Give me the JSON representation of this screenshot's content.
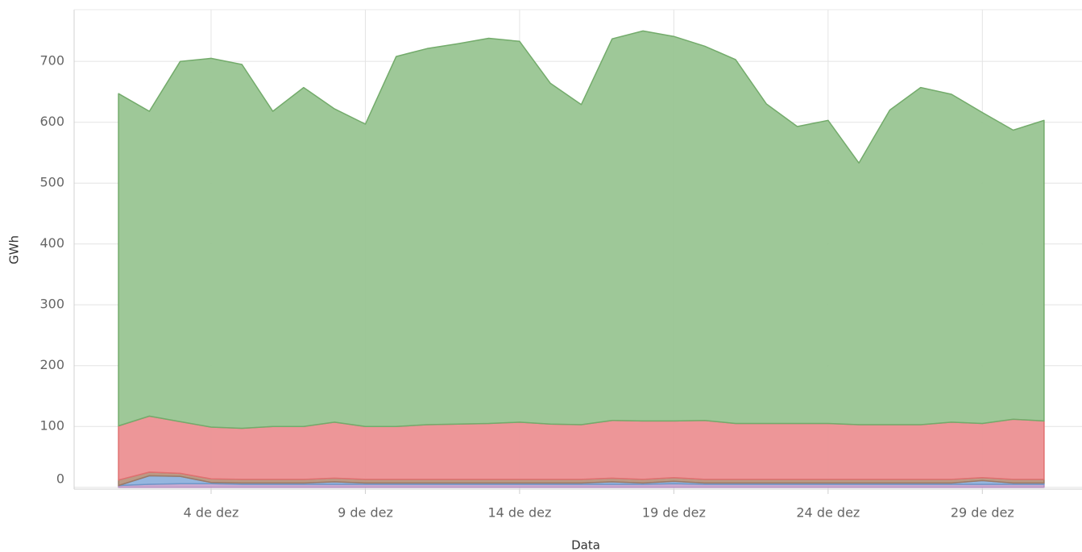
{
  "chart_data": {
    "type": "stacked_area",
    "x_label": "Data",
    "y_label": "GWh",
    "x": [
      1,
      2,
      3,
      4,
      5,
      6,
      7,
      8,
      9,
      10,
      11,
      12,
      13,
      14,
      15,
      16,
      17,
      18,
      19,
      20,
      21,
      22,
      23,
      24,
      25,
      26,
      27,
      28,
      29,
      30,
      31
    ],
    "series": [
      {
        "color": "#c8a6cf",
        "stroke": "#b58fbf",
        "values": [
          3,
          5,
          6,
          6,
          5,
          5,
          5,
          5,
          5,
          5,
          5,
          5,
          5,
          5,
          5,
          5,
          5,
          5,
          6,
          5,
          5,
          5,
          5,
          5,
          5,
          5,
          5,
          5,
          5,
          5,
          5
        ]
      },
      {
        "color": "#8fb2dd",
        "stroke": "#6f96c8",
        "values": [
          0,
          14,
          12,
          2,
          2,
          2,
          2,
          4,
          2,
          2,
          2,
          2,
          2,
          2,
          2,
          2,
          4,
          2,
          4,
          2,
          2,
          2,
          2,
          2,
          2,
          2,
          2,
          2,
          6,
          2,
          2
        ]
      },
      {
        "color": "#b8957e",
        "stroke": "#9c7a66",
        "values": [
          9,
          6,
          5,
          6,
          6,
          6,
          6,
          6,
          6,
          6,
          6,
          6,
          6,
          6,
          6,
          6,
          6,
          6,
          6,
          6,
          6,
          6,
          6,
          6,
          6,
          6,
          6,
          6,
          5,
          6,
          6
        ]
      },
      {
        "color": "#ec9092",
        "stroke": "#e07070",
        "values": [
          89,
          92,
          85,
          85,
          84,
          87,
          87,
          92,
          87,
          87,
          90,
          91,
          92,
          94,
          91,
          90,
          95,
          96,
          93,
          97,
          92,
          92,
          92,
          92,
          90,
          90,
          90,
          94,
          89,
          99,
          96
        ]
      },
      {
        "color": "#99c592",
        "stroke": "#73ab6b",
        "values": [
          546,
          501,
          592,
          606,
          598,
          518,
          557,
          515,
          497,
          608,
          618,
          625,
          633,
          626,
          560,
          526,
          627,
          641,
          632,
          615,
          598,
          525,
          488,
          498,
          430,
          517,
          554,
          539,
          511,
          475,
          494
        ]
      }
    ],
    "xlim": [
      -0.44,
      32.23
    ],
    "xticks": [
      {
        "value": 4,
        "label": "4 de dez"
      },
      {
        "value": 9,
        "label": "9 de dez"
      },
      {
        "value": 14,
        "label": "14 de dez"
      },
      {
        "value": 19,
        "label": "19 de dez"
      },
      {
        "value": 24,
        "label": "24 de dez"
      },
      {
        "value": 29,
        "label": "29 de dez"
      }
    ],
    "ylim": [
      -3,
      785
    ],
    "yticks": [
      0,
      100,
      200,
      300,
      400,
      500,
      600,
      700
    ],
    "grid": true
  }
}
